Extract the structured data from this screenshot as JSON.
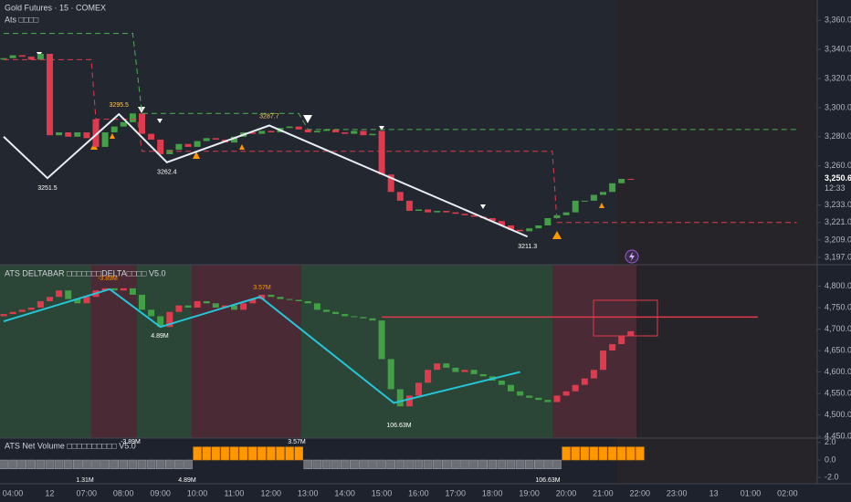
{
  "chart_data": [
    {
      "type": "candlestick",
      "title": "Gold Futures · 15 · COMEX",
      "subtitle": "Ats □□□□",
      "up_color": "#43a047",
      "down_color": "#e03a4e",
      "open": [
        3333,
        3334,
        3336,
        3335,
        3333,
        3337,
        3281,
        3283,
        3280,
        3283,
        3292,
        3273,
        3283,
        3287,
        3290,
        3296,
        3282,
        3278,
        3268,
        3271,
        3275,
        3273,
        3277,
        3279,
        3278,
        3276,
        3280,
        3283,
        3282,
        3284,
        3283,
        3286,
        3287,
        3285,
        3283,
        3284,
        3285,
        3283,
        3282,
        3284,
        3281,
        3284,
        3254,
        3242,
        3236,
        3229,
        3230,
        3228,
        3229,
        3228,
        3227,
        3226,
        3225,
        3224,
        3222,
        3219,
        3216,
        3215,
        3217,
        3219,
        3224,
        3226,
        3228,
        3236,
        3236,
        3240,
        3242,
        3248,
        3251
      ],
      "close": [
        3334,
        3336,
        3335,
        3333,
        3337,
        3281,
        3283,
        3280,
        3283,
        3279,
        3273,
        3283,
        3287,
        3290,
        3296,
        3282,
        3278,
        3268,
        3271,
        3275,
        3273,
        3277,
        3279,
        3278,
        3276,
        3280,
        3283,
        3282,
        3284,
        3283,
        3286,
        3287,
        3285,
        3283,
        3284,
        3285,
        3283,
        3282,
        3284,
        3281,
        3282,
        3254,
        3242,
        3236,
        3229,
        3230,
        3228,
        3229,
        3228,
        3227,
        3226,
        3225,
        3224,
        3222,
        3219,
        3216,
        3215,
        3217,
        3219,
        3224,
        3226,
        3228,
        3236,
        3236,
        3240,
        3242,
        3248,
        3251,
        3250.6
      ],
      "lines": [
        {
          "color": "#4caf50",
          "x": [
            0,
            14,
            15,
            32,
            33,
            86
          ],
          "values": [
            3351,
            3351,
            3296,
            3296,
            3285,
            3285
          ]
        },
        {
          "color": "#e03a4e",
          "x": [
            0,
            9.5,
            10,
            14.5,
            15,
            59.5,
            60,
            86
          ],
          "values": [
            3333,
            3333,
            3292,
            3292,
            3270,
            3270,
            3221,
            3221
          ]
        }
      ],
      "zigzag": {
        "color": "#e8eef5",
        "x": [
          0,
          4.75,
          12.5,
          17.7,
          28.8,
          56.8
        ],
        "values": [
          3280,
          3251.5,
          3295.5,
          3262.4,
          3287.7,
          3211.3
        ]
      },
      "ylim": [
        3192,
        3374
      ],
      "yticks": [
        {
          "value": 3360,
          "label": "3,360.0"
        },
        {
          "value": 3340,
          "label": "3,340.0"
        },
        {
          "value": 3320,
          "label": "3,320.0"
        },
        {
          "value": 3300,
          "label": "3,300.0"
        },
        {
          "value": 3280,
          "label": "3,280.0"
        },
        {
          "value": 3260,
          "label": "3,260.0"
        },
        {
          "value": 3233,
          "label": "3,233.0"
        },
        {
          "value": 3221,
          "label": "3,221.0"
        },
        {
          "value": 3209,
          "label": "3,209.0"
        },
        {
          "value": 3197,
          "label": "3,197.0"
        }
      ],
      "last_price": {
        "value": 3250.6,
        "label": "3,250.6"
      },
      "countdown": "12:33"
    },
    {
      "type": "candlestick",
      "title": "ATS DELTABAR □□□□□□□DELTA□□□□ V5.0",
      "up_color": "#e03a4e",
      "down_color": "#43a047",
      "open": [
        4730,
        4735,
        4740,
        4745,
        4750,
        4765,
        4775,
        4790,
        4770,
        4760,
        4775,
        4790,
        4795,
        4790,
        4795,
        4780,
        4745,
        4730,
        4705,
        4740,
        4755,
        4750,
        4765,
        4760,
        4750,
        4755,
        4745,
        4760,
        4770,
        4780,
        4775,
        4770,
        4768,
        4765,
        4760,
        4745,
        4740,
        4735,
        4730,
        4728,
        4725,
        4720,
        4630,
        4560,
        4520,
        4545,
        4575,
        4605,
        4620,
        4610,
        4600,
        4605,
        4595,
        4590,
        4580,
        4570,
        4555,
        4545,
        4540,
        4535,
        4530,
        4545,
        4555,
        4570,
        4585,
        4605,
        4650,
        4665,
        4685
      ],
      "close": [
        4735,
        4740,
        4745,
        4750,
        4765,
        4775,
        4790,
        4770,
        4760,
        4775,
        4790,
        4795,
        4790,
        4795,
        4780,
        4745,
        4730,
        4705,
        4740,
        4755,
        4750,
        4765,
        4760,
        4750,
        4755,
        4745,
        4760,
        4770,
        4780,
        4775,
        4770,
        4768,
        4765,
        4760,
        4745,
        4740,
        4735,
        4730,
        4728,
        4725,
        4720,
        4630,
        4560,
        4520,
        4545,
        4575,
        4605,
        4620,
        4610,
        4600,
        4605,
        4595,
        4590,
        4580,
        4570,
        4555,
        4545,
        4540,
        4535,
        4530,
        4545,
        4555,
        4570,
        4585,
        4605,
        4650,
        4665,
        4685,
        4695
      ],
      "zigzag": {
        "color": "#26c6da",
        "x": [
          0,
          11.5,
          17,
          27.8,
          42.3,
          56
        ],
        "values": [
          4718,
          4793,
          4705,
          4775,
          4528,
          4600
        ]
      },
      "hline": 4728,
      "annotations": [
        "-3.89M",
        "4.89M",
        "3.57M",
        "106.63M"
      ],
      "ylim": [
        4446,
        4850
      ],
      "yticks": [
        {
          "value": 4800,
          "label": "4,800.0"
        },
        {
          "value": 4750,
          "label": "4,750.0"
        },
        {
          "value": 4700,
          "label": "4,700.0"
        },
        {
          "value": 4650,
          "label": "4,650.0"
        },
        {
          "value": 4600,
          "label": "4,600.0"
        },
        {
          "value": 4550,
          "label": "4,550.0"
        },
        {
          "value": 4500,
          "label": "4,500.0"
        },
        {
          "value": 4450,
          "label": "4,450.0"
        }
      ]
    },
    {
      "type": "bar",
      "title": "ATS Net Volume □□□□□□□□□□ V5.0",
      "pos_color": "#ff9800",
      "neg_color": "#6b6e75",
      "values": [
        -1,
        -1,
        -1,
        -1,
        -1,
        -1,
        -1,
        -1,
        -1,
        -1,
        -1,
        -1,
        -1,
        -1,
        -1,
        -1,
        -1,
        -1,
        -1,
        -1,
        -1,
        1.5,
        1.5,
        1.5,
        1.5,
        1.5,
        1.5,
        1.5,
        1.5,
        1.5,
        1.5,
        1.5,
        1.5,
        -1,
        -1,
        -1,
        -1,
        -1,
        -1,
        -1,
        -1,
        -1,
        -1,
        -1,
        -1,
        -1,
        -1,
        -1,
        -1,
        -1,
        -1,
        -1,
        -1,
        -1,
        -1,
        -1,
        -1,
        -1,
        -1,
        -1,
        -1,
        1.5,
        1.5,
        1.5,
        1.5,
        1.5,
        1.5,
        1.5,
        1.5,
        1.5
      ],
      "annotations": [
        "-3.89M",
        "1.31M",
        "4.89M",
        "3.57M",
        "106.63M"
      ],
      "ylim": [
        -2.7,
        2.5
      ],
      "yticks": [
        {
          "value": 2,
          "label": "2.0"
        },
        {
          "value": 0,
          "label": "0.0"
        },
        {
          "value": -2,
          "label": "-2.0"
        }
      ]
    }
  ],
  "time_axis": [
    "04:00",
    "12",
    "07:00",
    "08:00",
    "09:00",
    "10:00",
    "11:00",
    "12:00",
    "13:00",
    "14:00",
    "15:00",
    "16:00",
    "17:00",
    "18:00",
    "19:00",
    "20:00",
    "21:00",
    "22:00",
    "23:00",
    "13",
    "01:00",
    "02:00"
  ]
}
